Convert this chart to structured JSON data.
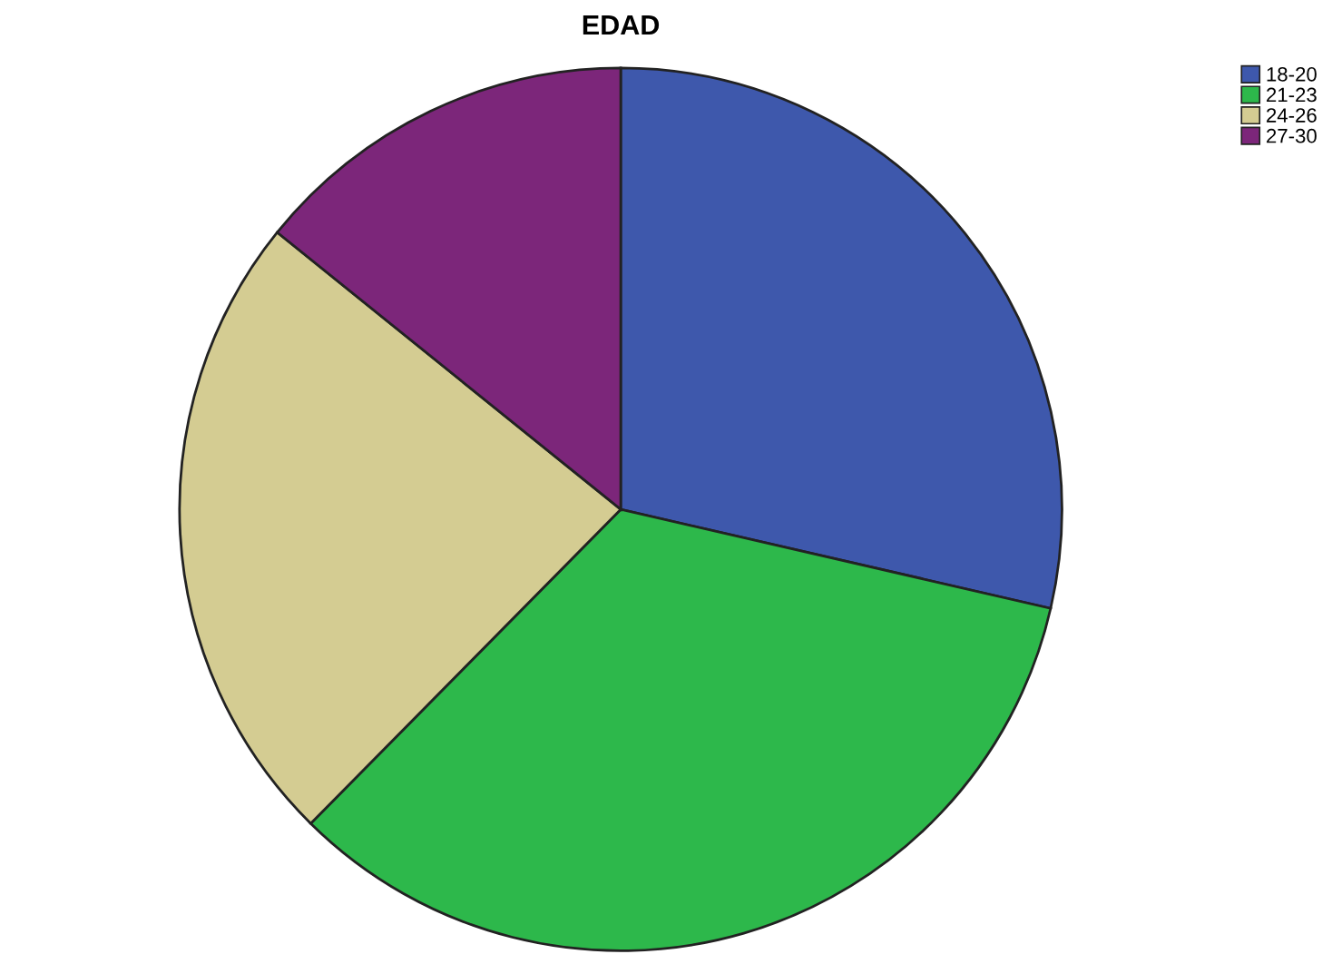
{
  "chart_data": {
    "type": "pie",
    "title": "EDAD",
    "categories": [
      "18-20",
      "21-23",
      "24-26",
      "27-30"
    ],
    "values": [
      28.6,
      33.8,
      23.4,
      14.2
    ],
    "colors": [
      "#3e58ac",
      "#2db84b",
      "#d4cc92",
      "#7c267a"
    ],
    "legend": "top right"
  }
}
